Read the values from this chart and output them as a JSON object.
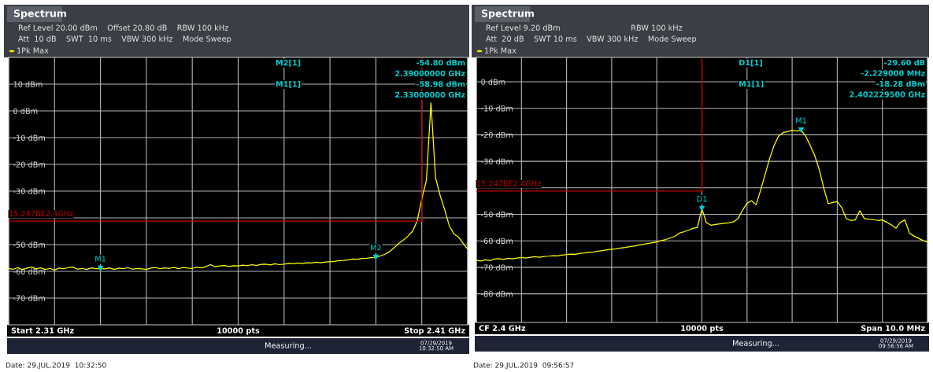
{
  "chart_data": [
    {
      "type": "line",
      "title": "Spectrum",
      "subtitle": "1Pk Max",
      "tick_labels": "y",
      "annotations": [
        "Ref Level 20.00 dBm    Offset 20.80 dB    RBW 100 kHz",
        "Att  10 dB    SWT  10 ms    VBW 300 kHz    Mode Sweep",
        "M2[1]",
        "-54.80 dBm",
        "2.39000000 GHz",
        "M1[1]",
        "-58.98 dBm",
        "2.33000000 GHz",
        "Start 2.31 GHz",
        "10000 pts",
        "Stop 2.41 GHz",
        "Measuring...",
        "07/29/2019\n10:32:50 AM",
        "Date: 29.JUL.2019  10:32:50",
        {
          "text": "15.247BE2.4GHz",
          "y": -41.2
        }
      ],
      "categories": [
        null,
        null,
        null,
        null,
        null,
        null,
        null,
        null,
        null,
        null,
        null,
        null,
        null,
        null,
        null,
        null,
        null,
        null,
        null,
        null,
        null,
        null,
        null,
        null,
        null,
        null,
        null,
        null,
        null,
        null,
        null,
        null,
        null,
        null,
        null,
        null,
        null,
        null,
        null,
        null,
        null,
        null,
        null,
        null,
        null,
        null,
        null,
        null,
        null,
        null,
        null,
        null,
        null,
        null,
        null,
        null,
        null,
        null,
        null,
        null,
        null,
        null,
        null,
        null,
        null,
        null,
        null,
        null,
        null,
        null,
        null,
        null,
        null,
        null,
        null,
        null,
        null,
        null,
        null,
        null,
        null,
        null,
        null,
        null,
        null,
        null,
        null,
        null,
        null,
        null,
        null,
        null,
        null,
        null,
        null,
        null,
        null,
        null,
        null,
        null,
        null
      ],
      "ylim": [
        -80,
        20
      ],
      "yticks": [
        {
          "value": 10,
          "label": "10 dBm"
        },
        {
          "value": 0,
          "label": "0 dBm"
        },
        {
          "value": -10,
          "label": "-10 dBm"
        },
        {
          "value": -20,
          "label": "-20 dBm"
        },
        {
          "value": -30,
          "label": "-30 dBm"
        },
        {
          "value": -40,
          "label": null
        },
        {
          "value": -50,
          "label": "-50 dBm"
        },
        {
          "value": -60,
          "label": "-60 dBm"
        },
        {
          "value": -70,
          "label": "-70 dBm"
        }
      ],
      "grid": true,
      "series": [
        {
          "type": "line",
          "color": "#ffff00",
          "values": [
            -58.9,
            -59.2,
            -58.6,
            -59.4,
            -58.8,
            -58.4,
            -59.1,
            -58.7,
            -59.3,
            -58.9,
            -59.5,
            -58.8,
            -59.0,
            -58.6,
            -58.4,
            -59.2,
            -58.9,
            -59.3,
            -58.7,
            -59.0,
            -58.98,
            -59.1,
            -58.7,
            -59.3,
            -58.8,
            -59.0,
            -58.6,
            -59.2,
            -58.9,
            -59.1,
            -59.3,
            -58.8,
            -58.6,
            -59.0,
            -58.7,
            -58.9,
            -58.5,
            -59.0,
            -58.6,
            -58.8,
            -58.9,
            -58.4,
            -58.7,
            -58.2,
            -57.5,
            -58.3,
            -58.0,
            -57.8,
            -58.2,
            -57.9,
            -58.0,
            -57.7,
            -57.9,
            -57.5,
            -57.8,
            -57.4,
            -57.3,
            -57.6,
            -57.2,
            -57.5,
            -57.3,
            -57.0,
            -57.2,
            -56.9,
            -57.1,
            -56.8,
            -56.9,
            -56.6,
            -56.8,
            -56.5,
            -56.4,
            -56.3,
            -56.0,
            -55.9,
            -55.7,
            -55.4,
            -55.5,
            -55.2,
            -55.1,
            -54.9,
            -54.8,
            -54.2,
            -53.6,
            -52.6,
            -51.2,
            -49.5,
            -48.3,
            -46.8,
            -45.0,
            -41.1,
            -33.0,
            -26.0,
            3.0,
            -25.0,
            -31.6,
            -37.0,
            -43.0,
            -46.0,
            -47.2,
            -49.5,
            -51.7
          ]
        },
        {
          "type": "line",
          "color": "#c00000",
          "values": [
            -41.2,
            -41.2,
            -41.2,
            -41.2,
            -41.2,
            -41.2,
            -41.2,
            -41.2,
            -41.2,
            -41.2,
            -41.2,
            -41.2,
            -41.2,
            -41.2,
            -41.2,
            -41.2,
            -41.2,
            -41.2,
            -41.2,
            -41.2,
            -41.2,
            -41.2,
            -41.2,
            -41.2,
            -41.2,
            -41.2,
            -41.2,
            -41.2,
            -41.2,
            -41.2,
            -41.2,
            -41.2,
            -41.2,
            -41.2,
            -41.2,
            -41.2,
            -41.2,
            -41.2,
            -41.2,
            -41.2,
            -41.2,
            -41.2,
            -41.2,
            -41.2,
            -41.2,
            -41.2,
            -41.2,
            -41.2,
            -41.2,
            -41.2,
            -41.2,
            -41.2,
            -41.2,
            -41.2,
            -41.2,
            -41.2,
            -41.2,
            -41.2,
            -41.2,
            -41.2,
            -41.2,
            -41.2,
            -41.2,
            -41.2,
            -41.2,
            -41.2,
            -41.2,
            -41.2,
            -41.2,
            -41.2,
            -41.2,
            -41.2,
            -41.2,
            -41.2,
            -41.2,
            -41.2,
            -41.2,
            -41.2,
            -41.2,
            -41.2,
            -41.2,
            -41.2,
            -41.2,
            -41.2,
            -41.2,
            -41.2,
            -41.2,
            -41.2,
            -41.2,
            -41.2,
            -41.2,
            null,
            null,
            null,
            null,
            null,
            null,
            null,
            null,
            null,
            null
          ]
        },
        {
          "type": "scatter",
          "name": "M1",
          "color": "#00d0d0",
          "values": [
            null,
            null,
            null,
            null,
            null,
            null,
            null,
            null,
            null,
            null,
            null,
            null,
            null,
            null,
            null,
            null,
            null,
            null,
            null,
            null,
            -58.98,
            null,
            null,
            null,
            null,
            null,
            null,
            null,
            null,
            null,
            null,
            null,
            null,
            null,
            null,
            null,
            null,
            null,
            null,
            null,
            null,
            null,
            null,
            null,
            null,
            null,
            null,
            null,
            null,
            null,
            null,
            null,
            null,
            null,
            null,
            null,
            null,
            null,
            null,
            null,
            null,
            null,
            null,
            null,
            null,
            null,
            null,
            null,
            null,
            null,
            null,
            null,
            null,
            null,
            null,
            null,
            null,
            null,
            null,
            null,
            null,
            null,
            null,
            null,
            null,
            null,
            null,
            null,
            null,
            null,
            null,
            null,
            null,
            null,
            null,
            null,
            null,
            null,
            null,
            null,
            null
          ]
        },
        {
          "type": "scatter",
          "name": "M2",
          "color": "#00d0d0",
          "values": [
            null,
            null,
            null,
            null,
            null,
            null,
            null,
            null,
            null,
            null,
            null,
            null,
            null,
            null,
            null,
            null,
            null,
            null,
            null,
            null,
            null,
            null,
            null,
            null,
            null,
            null,
            null,
            null,
            null,
            null,
            null,
            null,
            null,
            null,
            null,
            null,
            null,
            null,
            null,
            null,
            null,
            null,
            null,
            null,
            null,
            null,
            null,
            null,
            null,
            null,
            null,
            null,
            null,
            null,
            null,
            null,
            null,
            null,
            null,
            null,
            null,
            null,
            null,
            null,
            null,
            null,
            null,
            null,
            null,
            null,
            null,
            null,
            null,
            null,
            null,
            null,
            null,
            null,
            null,
            null,
            -54.8,
            null,
            null,
            null,
            null,
            null,
            null,
            null,
            null,
            null,
            null,
            null,
            null,
            null,
            null,
            null,
            null,
            null,
            null,
            null,
            null
          ]
        }
      ]
    },
    {
      "type": "line",
      "title": "Spectrum",
      "subtitle": "1Pk Max",
      "tick_labels": "y",
      "annotations": [
        "Ref Level 9.20 dBm                             RBW 100 kHz",
        "Att  20 dB    SWT 10 ms    VBW 300 kHz    Mode Sweep",
        "D1[1]",
        "-29.60 dB",
        "-2.229000 MHz",
        "M1[1]",
        "-18.28 dBm",
        "2.402229500 GHz",
        "CF 2.4 GHz",
        "10000 pts",
        "Span 10.0 MHz",
        "Measuring...",
        "07/29/2019\n09:56:56 AM",
        "Date: 29.JUL.2019  09:56:57",
        {
          "text": "15.247BE2.4GHz",
          "y": -41.2
        }
      ],
      "categories": [
        null,
        null,
        null,
        null,
        null,
        null,
        null,
        null,
        null,
        null,
        null,
        null,
        null,
        null,
        null,
        null,
        null,
        null,
        null,
        null,
        null,
        null,
        null,
        null,
        null,
        null,
        null,
        null,
        null,
        null,
        null,
        null,
        null,
        null,
        null,
        null,
        null,
        null,
        null,
        null,
        null,
        null,
        null,
        null,
        null,
        null,
        null,
        null,
        null,
        null,
        null,
        null,
        null,
        null,
        null,
        null,
        null,
        null,
        null,
        null,
        null,
        null,
        null,
        null,
        null,
        null,
        null,
        null,
        null,
        null,
        null,
        null,
        null,
        null,
        null,
        null,
        null,
        null,
        null,
        null,
        null,
        null,
        null,
        null,
        null,
        null,
        null,
        null,
        null,
        null,
        null,
        null,
        null,
        null,
        null,
        null,
        null,
        null,
        null,
        null,
        null
      ],
      "ylim": [
        -90.8,
        9.2
      ],
      "yticks": [
        {
          "value": 0,
          "label": "0 dBm"
        },
        {
          "value": -10,
          "label": "-10 dBm"
        },
        {
          "value": -20,
          "label": "-20 dBm"
        },
        {
          "value": -30,
          "label": "-30 dBm"
        },
        {
          "value": -40,
          "label": null
        },
        {
          "value": -50,
          "label": "-50 dBm"
        },
        {
          "value": -60,
          "label": "-60 dBm"
        },
        {
          "value": -70,
          "label": "-70 dBm"
        },
        {
          "value": -80,
          "label": "-80 dBm"
        }
      ],
      "grid": true,
      "series": [
        {
          "type": "line",
          "color": "#ffff00",
          "values": [
            -67.4,
            -67.6,
            -67.2,
            -67.5,
            -66.9,
            -66.7,
            -67.0,
            -66.6,
            -66.8,
            -66.5,
            -66.3,
            -66.5,
            -66.2,
            -66.0,
            -66.2,
            -65.9,
            -65.8,
            -65.6,
            -65.7,
            -65.4,
            -65.2,
            -65.0,
            -65.1,
            -64.7,
            -64.6,
            -64.3,
            -64.2,
            -63.9,
            -63.7,
            -63.4,
            -63.2,
            -63.0,
            -62.7,
            -62.5,
            -62.2,
            -62.0,
            -61.6,
            -61.3,
            -61.0,
            -60.7,
            -60.4,
            -59.9,
            -59.5,
            -58.9,
            -58.3,
            -57.1,
            -56.6,
            -56.0,
            -55.3,
            -54.9,
            -47.88,
            -53.2,
            -54.1,
            -53.8,
            -53.6,
            -53.4,
            -53.2,
            -52.8,
            -51.6,
            -48.5,
            -45.8,
            -44.9,
            -46.4,
            -41.0,
            -35.0,
            -29.0,
            -24.0,
            -20.5,
            -19.2,
            -18.8,
            -18.3,
            -18.6,
            -18.28,
            -20.5,
            -24.0,
            -27.8,
            -33.0,
            -40.0,
            -46.0,
            -45.5,
            -45.2,
            -47.5,
            -51.6,
            -52.3,
            -52.1,
            -48.6,
            -51.6,
            -51.9,
            -52.0,
            -52.3,
            -52.1,
            -53.0,
            -54.0,
            -55.2,
            -53.0,
            -52.1,
            -57.1,
            -58.2,
            -59.0,
            -59.9,
            -60.5
          ]
        },
        {
          "type": "line",
          "color": "#c00000",
          "values": [
            -41.2,
            -41.2,
            -41.2,
            -41.2,
            -41.2,
            -41.2,
            -41.2,
            -41.2,
            -41.2,
            -41.2,
            -41.2,
            -41.2,
            -41.2,
            -41.2,
            -41.2,
            -41.2,
            -41.2,
            -41.2,
            -41.2,
            -41.2,
            -41.2,
            -41.2,
            -41.2,
            -41.2,
            -41.2,
            -41.2,
            -41.2,
            -41.2,
            -41.2,
            -41.2,
            -41.2,
            -41.2,
            -41.2,
            -41.2,
            -41.2,
            -41.2,
            -41.2,
            -41.2,
            -41.2,
            -41.2,
            -41.2,
            -41.2,
            -41.2,
            -41.2,
            -41.2,
            -41.2,
            -41.2,
            -41.2,
            -41.2,
            -41.2,
            -41.2,
            null,
            null,
            null,
            null,
            null,
            null,
            null,
            null,
            null,
            null,
            null,
            null,
            null,
            null,
            null,
            null,
            null,
            null,
            null,
            null,
            null,
            null,
            null,
            null,
            null,
            null,
            null,
            null,
            null,
            null,
            null,
            null,
            null,
            null,
            null,
            null,
            null,
            null,
            null,
            null,
            null,
            null,
            null,
            null,
            null,
            null,
            null,
            null,
            null,
            null
          ]
        },
        {
          "type": "scatter",
          "name": "M1",
          "color": "#00d0d0",
          "values": [
            null,
            null,
            null,
            null,
            null,
            null,
            null,
            null,
            null,
            null,
            null,
            null,
            null,
            null,
            null,
            null,
            null,
            null,
            null,
            null,
            null,
            null,
            null,
            null,
            null,
            null,
            null,
            null,
            null,
            null,
            null,
            null,
            null,
            null,
            null,
            null,
            null,
            null,
            null,
            null,
            null,
            null,
            null,
            null,
            null,
            null,
            null,
            null,
            null,
            null,
            null,
            null,
            null,
            null,
            null,
            null,
            null,
            null,
            null,
            null,
            null,
            null,
            null,
            null,
            null,
            null,
            null,
            null,
            null,
            null,
            null,
            null,
            -18.28,
            null,
            null,
            null,
            null,
            null,
            null,
            null,
            null,
            null,
            null,
            null,
            null,
            null,
            null,
            null,
            null,
            null,
            null,
            null,
            null,
            null,
            null,
            null,
            null,
            null,
            null,
            null,
            null
          ]
        },
        {
          "type": "scatter",
          "name": "D1",
          "color": "#00d0d0",
          "values": [
            null,
            null,
            null,
            null,
            null,
            null,
            null,
            null,
            null,
            null,
            null,
            null,
            null,
            null,
            null,
            null,
            null,
            null,
            null,
            null,
            null,
            null,
            null,
            null,
            null,
            null,
            null,
            null,
            null,
            null,
            null,
            null,
            null,
            null,
            null,
            null,
            null,
            null,
            null,
            null,
            null,
            null,
            null,
            null,
            null,
            null,
            null,
            null,
            null,
            null,
            -47.88,
            null,
            null,
            null,
            null,
            null,
            null,
            null,
            null,
            null,
            null,
            null,
            null,
            null,
            null,
            null,
            null,
            null,
            null,
            null,
            null,
            null,
            null,
            null,
            null,
            null,
            null,
            null,
            null,
            null,
            null,
            null,
            null,
            null,
            null,
            null,
            null,
            null,
            null,
            null,
            null,
            null,
            null,
            null,
            null,
            null,
            null,
            null,
            null,
            null,
            null
          ]
        }
      ]
    }
  ]
}
